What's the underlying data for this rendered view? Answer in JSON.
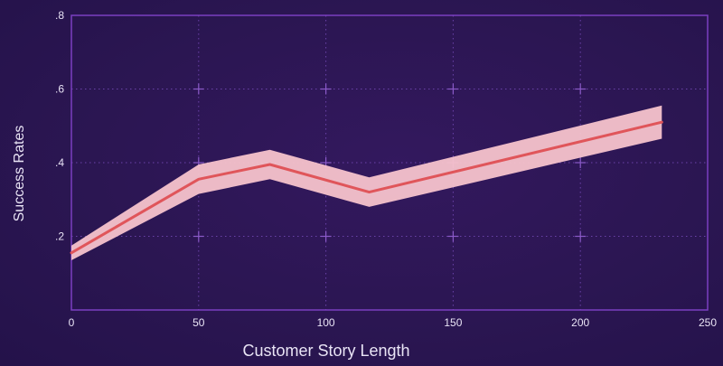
{
  "chart_data": {
    "type": "line",
    "xlabel": "Customer Story Length",
    "ylabel": "Success Rates",
    "xlim": [
      0,
      250
    ],
    "ylim": [
      0,
      0.8
    ],
    "x_ticks": [
      0,
      50,
      100,
      150,
      200,
      250
    ],
    "x_tick_labels": [
      "0",
      "50",
      "100",
      "150",
      "200",
      "250"
    ],
    "y_ticks": [
      0.2,
      0.4,
      0.6,
      0.8
    ],
    "y_tick_labels": [
      ".2",
      ".4",
      ".6",
      ".8"
    ],
    "grid": true,
    "series": [
      {
        "x": [
          0,
          50,
          78,
          117,
          232
        ],
        "y": [
          0.155,
          0.355,
          0.395,
          0.32,
          0.51
        ],
        "lower": [
          0.135,
          0.315,
          0.355,
          0.28,
          0.465
        ],
        "upper": [
          0.175,
          0.395,
          0.435,
          0.36,
          0.555
        ]
      }
    ],
    "colors": {
      "background": "#2b1652",
      "plot_border": "#7b3fc0",
      "grid": "#6a42a8",
      "line": "#e0555a",
      "band": "#f7c3cc"
    }
  }
}
